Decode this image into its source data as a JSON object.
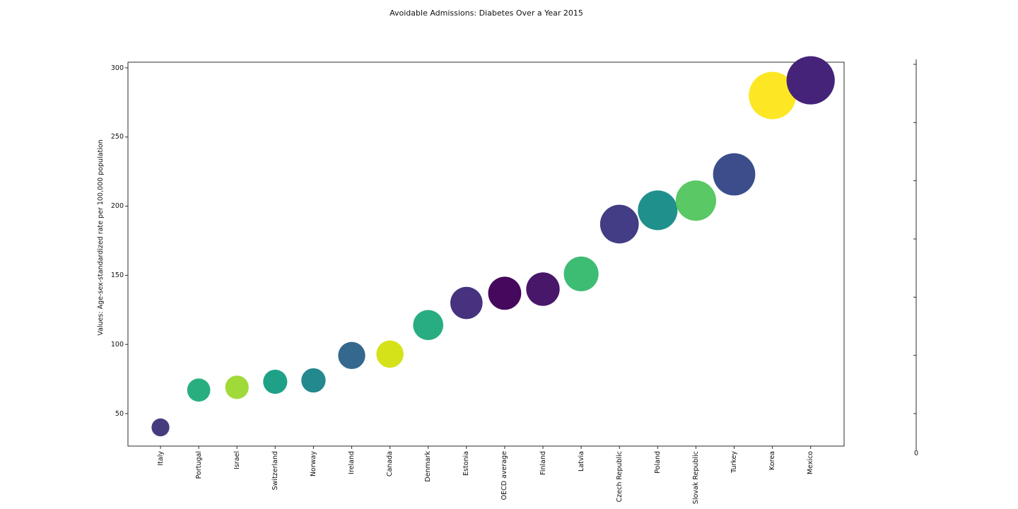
{
  "page": {
    "background_color": "#ffffff"
  },
  "chart_data": {
    "type": "scatter",
    "subtype": "bubble",
    "title": "Avoidable Admissions: Diabetes Over a Year 2015",
    "xlabel": "",
    "ylabel": "Values: Age-sex-standardized rate per 100,000 population",
    "categories": [
      "Italy",
      "Portugal",
      "Israel",
      "Switzerland",
      "Norway",
      "Ireland",
      "Canada",
      "Denmark",
      "Estonia",
      "OECD average",
      "Finland",
      "Latvia",
      "Czech Republic",
      "Poland",
      "Slovak Republic",
      "Turkey",
      "Korea",
      "Mexico"
    ],
    "values": [
      40,
      67,
      69,
      73,
      74,
      92,
      93,
      114,
      130,
      137,
      140,
      151,
      187,
      197,
      204,
      223,
      280,
      291
    ],
    "colors": [
      "#453c80",
      "#29af7f",
      "#a0da39",
      "#1fa187",
      "#23898e",
      "#35688e",
      "#d5e21a",
      "#27ad81",
      "#46327e",
      "#46085c",
      "#481769",
      "#3dbc74",
      "#423d84",
      "#20908c",
      "#5ac864",
      "#3b4d8b",
      "#fde725",
      "#452379"
    ],
    "bubble_size": "proportional to value",
    "yticks": [
      50,
      100,
      150,
      200,
      250,
      300
    ],
    "ylim": [
      25,
      305
    ],
    "grid": false,
    "legend": "none",
    "frame": true,
    "secondary_axis": {
      "position": "right",
      "xtick_labels": [
        "0"
      ],
      "ytick_count": 7,
      "ytick_labels": []
    }
  }
}
